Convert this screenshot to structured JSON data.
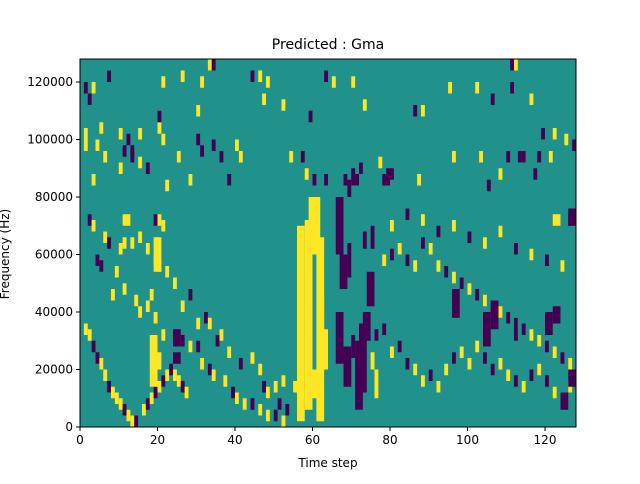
{
  "chart_data": {
    "type": "heatmap",
    "title": "Predicted : Gma",
    "xlabel": "Time step",
    "ylabel": "Frequency (Hz)",
    "xlim": [
      0,
      128
    ],
    "ylim": [
      0,
      128000
    ],
    "x_ticks": [
      0,
      20,
      40,
      60,
      80,
      100,
      120
    ],
    "x_tick_labels": [
      "0",
      "20",
      "40",
      "60",
      "80",
      "100",
      "120"
    ],
    "y_ticks": [
      0,
      20000,
      40000,
      60000,
      80000,
      100000,
      120000
    ],
    "y_tick_labels": [
      "0",
      "20000",
      "40000",
      "60000",
      "80000",
      "100000",
      "120000"
    ],
    "grid": false,
    "legend": "none",
    "colors": {
      "background": "#21918c",
      "low": "#440154",
      "high": "#fde725"
    },
    "cell_height_hz": 4000,
    "cells": [
      [
        1,
        120,
        0
      ],
      [
        2,
        116,
        0
      ],
      [
        3,
        120,
        1
      ],
      [
        5,
        106,
        1
      ],
      [
        7,
        124,
        0
      ],
      [
        1,
        104,
        1
      ],
      [
        1,
        100,
        1
      ],
      [
        4,
        100,
        1
      ],
      [
        10,
        104,
        1
      ],
      [
        12,
        102,
        0
      ],
      [
        15,
        104,
        1
      ],
      [
        20,
        106,
        1
      ],
      [
        20,
        110,
        0
      ],
      [
        21,
        122,
        1
      ],
      [
        26,
        124,
        1
      ],
      [
        30,
        112,
        1
      ],
      [
        31,
        122,
        1
      ],
      [
        33,
        128,
        1
      ],
      [
        34,
        128,
        0
      ],
      [
        44,
        124,
        0
      ],
      [
        46,
        124,
        1
      ],
      [
        48,
        122,
        1
      ],
      [
        47,
        116,
        1
      ],
      [
        52,
        114,
        1
      ],
      [
        59,
        110,
        0
      ],
      [
        63,
        124,
        0
      ],
      [
        65,
        122,
        1
      ],
      [
        70,
        122,
        1
      ],
      [
        73,
        114,
        1
      ],
      [
        86,
        112,
        0
      ],
      [
        88,
        112,
        1
      ],
      [
        95,
        120,
        1
      ],
      [
        102,
        120,
        1
      ],
      [
        106,
        116,
        0
      ],
      [
        111,
        128,
        0
      ],
      [
        111,
        120,
        0
      ],
      [
        112,
        128,
        1
      ],
      [
        116,
        116,
        1
      ],
      [
        119,
        104,
        0
      ],
      [
        122,
        104,
        1
      ],
      [
        125,
        102,
        1
      ],
      [
        127,
        100,
        0
      ],
      [
        3,
        88,
        1
      ],
      [
        6,
        96,
        1
      ],
      [
        10,
        92,
        1
      ],
      [
        11,
        98,
        0
      ],
      [
        13,
        96,
        0
      ],
      [
        13,
        98,
        0
      ],
      [
        15,
        94,
        1
      ],
      [
        17,
        92,
        0
      ],
      [
        21,
        102,
        1
      ],
      [
        22,
        86,
        1
      ],
      [
        25,
        96,
        1
      ],
      [
        28,
        88,
        1
      ],
      [
        30,
        102,
        0
      ],
      [
        31,
        98,
        0
      ],
      [
        34,
        100,
        0
      ],
      [
        36,
        96,
        0
      ],
      [
        38,
        88,
        0
      ],
      [
        40,
        100,
        1
      ],
      [
        41,
        96,
        1
      ],
      [
        54,
        96,
        1
      ],
      [
        57,
        96,
        0
      ],
      [
        58,
        90,
        1
      ],
      [
        60,
        88,
        0
      ],
      [
        63,
        88,
        0
      ],
      [
        68,
        88,
        0
      ],
      [
        70,
        90,
        0
      ],
      [
        72,
        92,
        0
      ],
      [
        77,
        94,
        1
      ],
      [
        87,
        88,
        1
      ],
      [
        96,
        96,
        1
      ],
      [
        103,
        96,
        1
      ],
      [
        105,
        86,
        0
      ],
      [
        108,
        90,
        1
      ],
      [
        110,
        96,
        0
      ],
      [
        113,
        96,
        0
      ],
      [
        114,
        96,
        0
      ],
      [
        117,
        90,
        0
      ],
      [
        118,
        96,
        0
      ],
      [
        121,
        96,
        1
      ],
      [
        2,
        74,
        0
      ],
      [
        3,
        72,
        1
      ],
      [
        6,
        68,
        1
      ],
      [
        7,
        66,
        0
      ],
      [
        10,
        64,
        1
      ],
      [
        11,
        66,
        1
      ],
      [
        13,
        66,
        1
      ],
      [
        15,
        68,
        1
      ],
      [
        19,
        74,
        0
      ],
      [
        20,
        74,
        1
      ],
      [
        21,
        72,
        1
      ],
      [
        17,
        64,
        1
      ],
      [
        19,
        60,
        1
      ],
      [
        20,
        58,
        1
      ],
      [
        22,
        56,
        1
      ],
      [
        24,
        52,
        1
      ],
      [
        26,
        44,
        1
      ],
      [
        28,
        48,
        0
      ],
      [
        30,
        38,
        1
      ],
      [
        32,
        40,
        0
      ],
      [
        33,
        38,
        1
      ],
      [
        35,
        32,
        0
      ],
      [
        36,
        34,
        1
      ],
      [
        38,
        28,
        1
      ],
      [
        41,
        24,
        0
      ],
      [
        44,
        26,
        1
      ],
      [
        46,
        22,
        1
      ],
      [
        47,
        16,
        0
      ],
      [
        48,
        14,
        1
      ],
      [
        50,
        16,
        1
      ],
      [
        51,
        10,
        0
      ],
      [
        52,
        18,
        1
      ],
      [
        55,
        16,
        1
      ],
      [
        4,
        60,
        0
      ],
      [
        5,
        58,
        0
      ],
      [
        8,
        48,
        1
      ],
      [
        9,
        56,
        1
      ],
      [
        11,
        50,
        1
      ],
      [
        14,
        46,
        1
      ],
      [
        15,
        42,
        1
      ],
      [
        17,
        44,
        1
      ],
      [
        18,
        48,
        1
      ],
      [
        19,
        40,
        1
      ],
      [
        21,
        34,
        1
      ],
      [
        24,
        34,
        0
      ],
      [
        26,
        32,
        0
      ],
      [
        28,
        30,
        1
      ],
      [
        30,
        30,
        0
      ],
      [
        31,
        24,
        1
      ],
      [
        33,
        22,
        0
      ],
      [
        34,
        20,
        1
      ],
      [
        37,
        18,
        1
      ],
      [
        39,
        14,
        0
      ],
      [
        40,
        12,
        1
      ],
      [
        42,
        10,
        1
      ],
      [
        44,
        10,
        0
      ],
      [
        46,
        8,
        1
      ],
      [
        48,
        6,
        1
      ],
      [
        50,
        6,
        0
      ],
      [
        52,
        4,
        1
      ],
      [
        53,
        8,
        0
      ],
      [
        1,
        36,
        1
      ],
      [
        2,
        34,
        1
      ],
      [
        3,
        30,
        0
      ],
      [
        4,
        26,
        0
      ],
      [
        5,
        24,
        1
      ],
      [
        6,
        20,
        1
      ],
      [
        7,
        16,
        0
      ],
      [
        8,
        14,
        1
      ],
      [
        9,
        12,
        1
      ],
      [
        10,
        10,
        1
      ],
      [
        11,
        8,
        0
      ],
      [
        12,
        6,
        1
      ],
      [
        13,
        4,
        1
      ],
      [
        14,
        4,
        0
      ],
      [
        16,
        8,
        1
      ],
      [
        17,
        10,
        0
      ],
      [
        18,
        12,
        1
      ],
      [
        19,
        14,
        0
      ],
      [
        20,
        16,
        1
      ],
      [
        21,
        18,
        0
      ],
      [
        22,
        20,
        1
      ],
      [
        23,
        22,
        0
      ],
      [
        24,
        20,
        1
      ],
      [
        25,
        18,
        1
      ],
      [
        26,
        16,
        0
      ],
      [
        27,
        14,
        1
      ],
      [
        76,
        34,
        0
      ],
      [
        78,
        36,
        0
      ],
      [
        80,
        28,
        1
      ],
      [
        82,
        30,
        0
      ],
      [
        84,
        24,
        0
      ],
      [
        86,
        22,
        1
      ],
      [
        88,
        18,
        1
      ],
      [
        90,
        20,
        0
      ],
      [
        92,
        16,
        1
      ],
      [
        94,
        22,
        1
      ],
      [
        96,
        26,
        0
      ],
      [
        98,
        28,
        1
      ],
      [
        100,
        24,
        1
      ],
      [
        102,
        30,
        1
      ],
      [
        104,
        26,
        0
      ],
      [
        106,
        22,
        0
      ],
      [
        108,
        24,
        1
      ],
      [
        110,
        20,
        1
      ],
      [
        112,
        18,
        0
      ],
      [
        114,
        16,
        1
      ],
      [
        116,
        20,
        0
      ],
      [
        118,
        22,
        1
      ],
      [
        120,
        18,
        0
      ],
      [
        122,
        14,
        1
      ],
      [
        124,
        12,
        0
      ],
      [
        126,
        16,
        1
      ],
      [
        78,
        60,
        1
      ],
      [
        80,
        62,
        0
      ],
      [
        82,
        64,
        1
      ],
      [
        84,
        60,
        0
      ],
      [
        86,
        58,
        1
      ],
      [
        88,
        66,
        0
      ],
      [
        90,
        64,
        1
      ],
      [
        92,
        58,
        1
      ],
      [
        94,
        56,
        0
      ],
      [
        96,
        54,
        1
      ],
      [
        98,
        52,
        0
      ],
      [
        100,
        50,
        1
      ],
      [
        102,
        48,
        0
      ],
      [
        104,
        46,
        1
      ],
      [
        106,
        44,
        0
      ],
      [
        108,
        42,
        1
      ],
      [
        110,
        40,
        0
      ],
      [
        112,
        38,
        1
      ],
      [
        114,
        36,
        0
      ],
      [
        116,
        34,
        1
      ],
      [
        118,
        32,
        1
      ],
      [
        120,
        30,
        0
      ],
      [
        122,
        28,
        1
      ],
      [
        124,
        26,
        0
      ],
      [
        126,
        24,
        1
      ],
      [
        127,
        20,
        0
      ],
      [
        80,
        72,
        1
      ],
      [
        84,
        76,
        0
      ],
      [
        88,
        74,
        1
      ],
      [
        92,
        70,
        0
      ],
      [
        96,
        72,
        1
      ],
      [
        100,
        68,
        0
      ],
      [
        104,
        66,
        1
      ],
      [
        108,
        70,
        1
      ],
      [
        112,
        64,
        0
      ],
      [
        116,
        62,
        1
      ],
      [
        120,
        60,
        0
      ],
      [
        124,
        58,
        1
      ],
      [
        126,
        74,
        0
      ],
      [
        127,
        76,
        1
      ]
    ],
    "rects": [
      [
        56,
        2,
        58,
        70,
        1
      ],
      [
        58,
        6,
        60,
        72,
        1
      ],
      [
        59,
        72,
        60,
        80,
        1
      ],
      [
        60,
        60,
        62,
        80,
        1
      ],
      [
        61,
        2,
        63,
        66,
        1
      ],
      [
        62,
        20,
        64,
        34,
        1
      ],
      [
        60,
        10,
        62,
        20,
        1
      ],
      [
        62,
        34,
        63,
        46,
        1
      ],
      [
        66,
        22,
        68,
        40,
        0
      ],
      [
        68,
        14,
        70,
        28,
        0
      ],
      [
        70,
        24,
        71,
        32,
        0
      ],
      [
        71,
        6,
        73,
        30,
        0
      ],
      [
        72,
        12,
        74,
        36,
        0
      ],
      [
        73,
        30,
        75,
        40,
        0
      ],
      [
        74,
        42,
        76,
        54,
        0
      ],
      [
        66,
        60,
        68,
        80,
        0
      ],
      [
        67,
        48,
        69,
        60,
        0
      ],
      [
        69,
        52,
        70,
        64,
        0
      ],
      [
        73,
        62,
        74,
        68,
        0
      ],
      [
        75,
        62,
        76,
        70,
        0
      ],
      [
        76,
        10,
        77,
        20,
        1
      ],
      [
        75,
        20,
        76,
        26,
        1
      ],
      [
        69,
        80,
        70,
        86,
        0
      ],
      [
        70,
        84,
        72,
        88,
        0
      ],
      [
        78,
        84,
        80,
        88,
        0
      ],
      [
        79,
        86,
        81,
        90,
        0
      ],
      [
        96,
        38,
        98,
        48,
        0
      ],
      [
        104,
        28,
        106,
        40,
        0
      ],
      [
        106,
        34,
        108,
        44,
        0
      ],
      [
        112,
        30,
        113,
        38,
        0
      ],
      [
        120,
        32,
        122,
        40,
        0
      ],
      [
        122,
        36,
        124,
        42,
        0
      ],
      [
        124,
        6,
        126,
        12,
        0
      ],
      [
        126,
        14,
        128,
        20,
        0
      ],
      [
        126,
        70,
        128,
        76,
        0
      ],
      [
        122,
        70,
        124,
        74,
        1
      ],
      [
        18,
        14,
        20,
        32,
        1
      ],
      [
        19,
        20,
        21,
        26,
        1
      ],
      [
        24,
        22,
        26,
        26,
        0
      ],
      [
        24,
        28,
        26,
        34,
        0
      ],
      [
        11,
        70,
        13,
        74,
        1
      ],
      [
        19,
        54,
        21,
        66,
        1
      ]
    ]
  }
}
